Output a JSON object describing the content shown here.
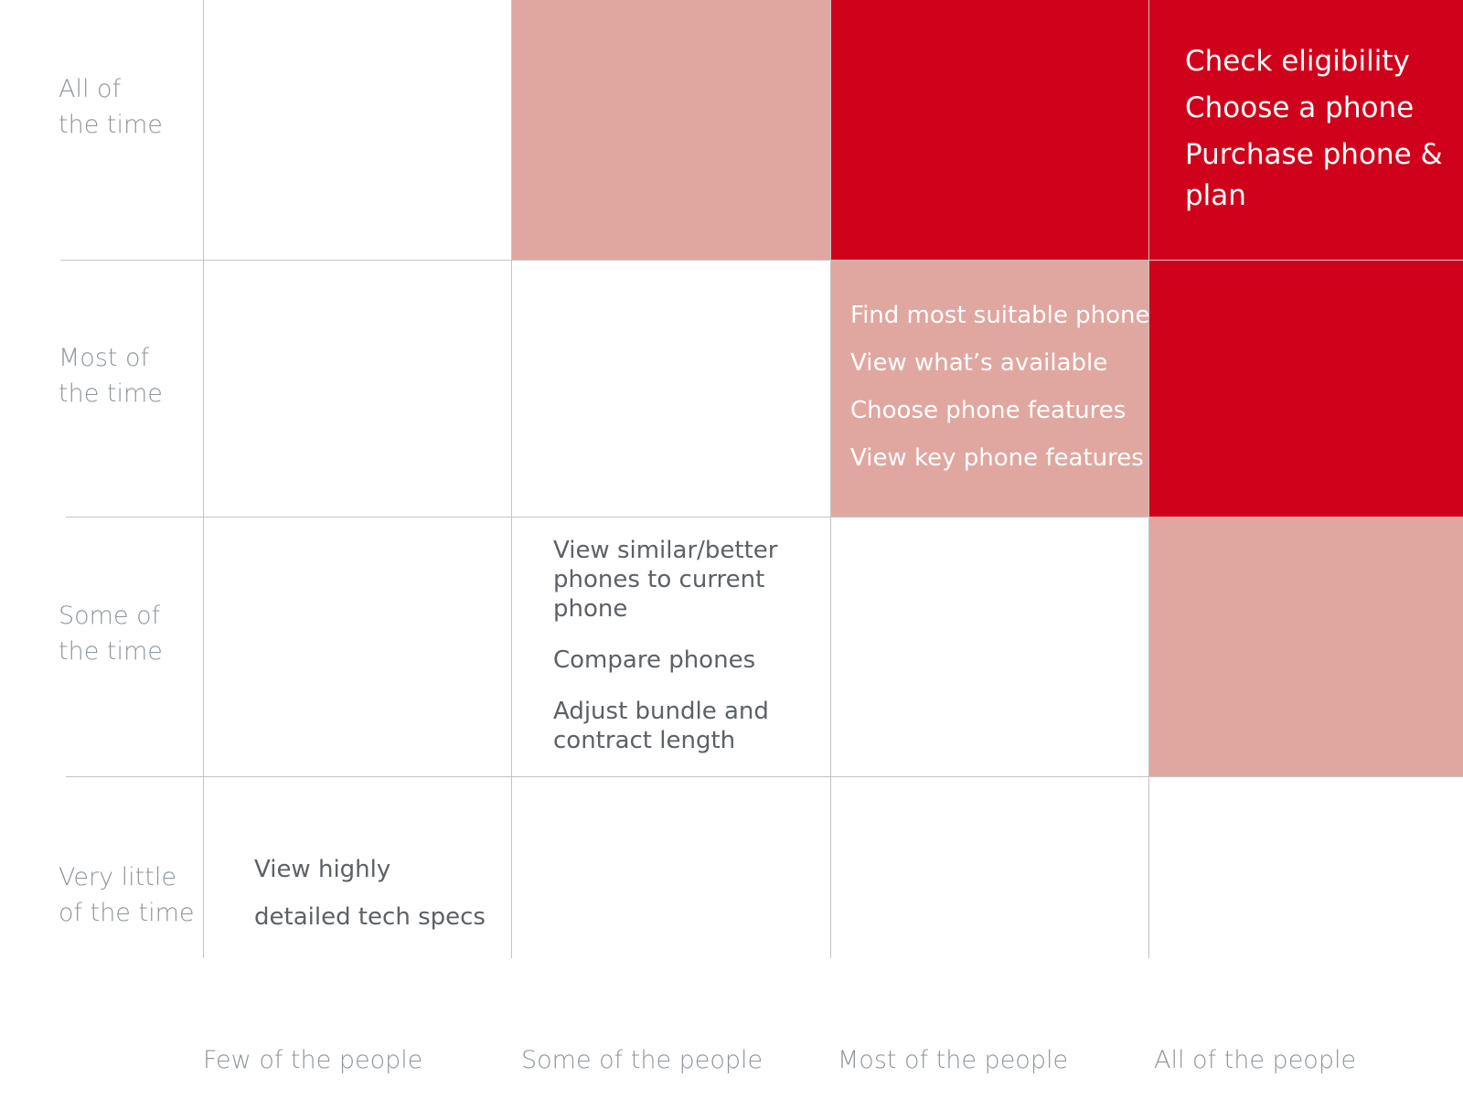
{
  "rows": [
    {
      "label_line1": "All of",
      "label_line2": "the time"
    },
    {
      "label_line1": "Most of",
      "label_line2": "the time"
    },
    {
      "label_line1": "Some of",
      "label_line2": "the time"
    },
    {
      "label_line1": "Very little",
      "label_line2": "of the time"
    }
  ],
  "columns": [
    {
      "label": "Few of the people"
    },
    {
      "label": "Some of the people"
    },
    {
      "label": "Most of the people"
    },
    {
      "label": "All of the people"
    }
  ],
  "colors": {
    "dark_red": "#d0021b",
    "light_red": "#e0a7a1",
    "grid": "#c4c4c4",
    "label_grey": "#8e959b",
    "task_dark": "#5c6166"
  },
  "tasks": {
    "all_time_all_people": [
      "Check eligibility",
      "Choose a phone",
      "Purchase phone &",
      "plan"
    ],
    "most_time_most_people": [
      "Find most suitable phone",
      "View what’s available",
      "Choose phone features",
      "View key phone features"
    ],
    "some_time_some_people": [
      [
        "View similar/better",
        "phones to current",
        "phone"
      ],
      [
        "Compare phones"
      ],
      [
        "Adjust bundle and",
        "contract length"
      ]
    ],
    "little_time_few_people": [
      "View highly",
      "detailed tech specs"
    ]
  }
}
